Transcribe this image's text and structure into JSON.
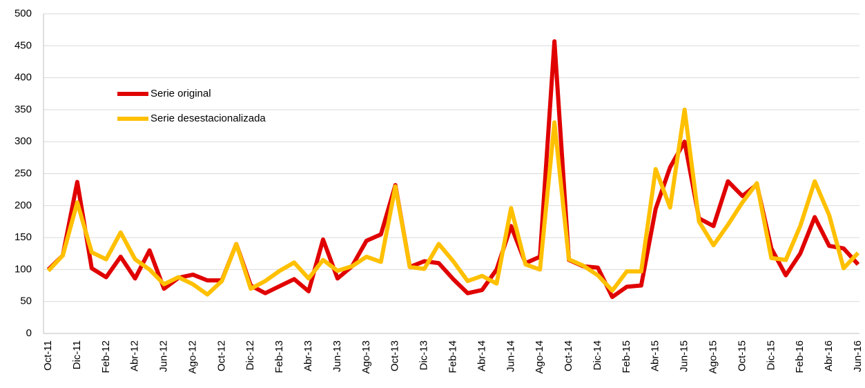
{
  "chart_data": {
    "type": "line",
    "categories": [
      "Oct-11",
      null,
      "Dic-11",
      null,
      "Feb-12",
      null,
      "Abr-12",
      null,
      "Jun-12",
      null,
      "Ago-12",
      null,
      "Oct-12",
      null,
      "Dic-12",
      null,
      "Feb-13",
      null,
      "Abr-13",
      null,
      "Jun-13",
      null,
      "Ago-13",
      null,
      "Oct-13",
      null,
      "Dic-13",
      null,
      "Feb-14",
      null,
      "Abr-14",
      null,
      "Jun-14",
      null,
      "Ago-14",
      null,
      "Oct-14",
      null,
      "Dic-14",
      null,
      "Feb-15",
      null,
      "Abr-15",
      null,
      "Jun-15",
      null,
      "Ago-15",
      null,
      "Oct-15",
      null,
      "Dic-15",
      null,
      "Feb-16",
      null,
      "Abr-16",
      null,
      "Jun-16"
    ],
    "series": [
      {
        "name": "Serie original",
        "color": "#e00000",
        "values": [
          100,
          122,
          237,
          102,
          88,
          120,
          86,
          130,
          70,
          87,
          92,
          83,
          83,
          140,
          75,
          63,
          74,
          85,
          66,
          147,
          86,
          105,
          145,
          155,
          232,
          104,
          113,
          110,
          85,
          63,
          68,
          100,
          168,
          110,
          120,
          457,
          115,
          105,
          103,
          57,
          73,
          75,
          195,
          260,
          300,
          180,
          168,
          238,
          215,
          233,
          133,
          91,
          125,
          182,
          137,
          133,
          108
        ]
      },
      {
        "name": "Serie desestacionalizada",
        "color": "#ffc000",
        "values": [
          98,
          122,
          205,
          127,
          116,
          158,
          116,
          100,
          77,
          88,
          77,
          61,
          82,
          140,
          70,
          82,
          98,
          111,
          86,
          115,
          98,
          105,
          120,
          112,
          230,
          104,
          101,
          140,
          113,
          82,
          90,
          78,
          196,
          108,
          100,
          330,
          116,
          106,
          91,
          67,
          97,
          97,
          257,
          197,
          350,
          175,
          138,
          170,
          205,
          235,
          118,
          115,
          168,
          238,
          185,
          102,
          126
        ]
      }
    ],
    "ylim": [
      0,
      500
    ],
    "yticks": [
      0,
      50,
      100,
      150,
      200,
      250,
      300,
      350,
      400,
      450,
      500
    ],
    "grid": true
  }
}
